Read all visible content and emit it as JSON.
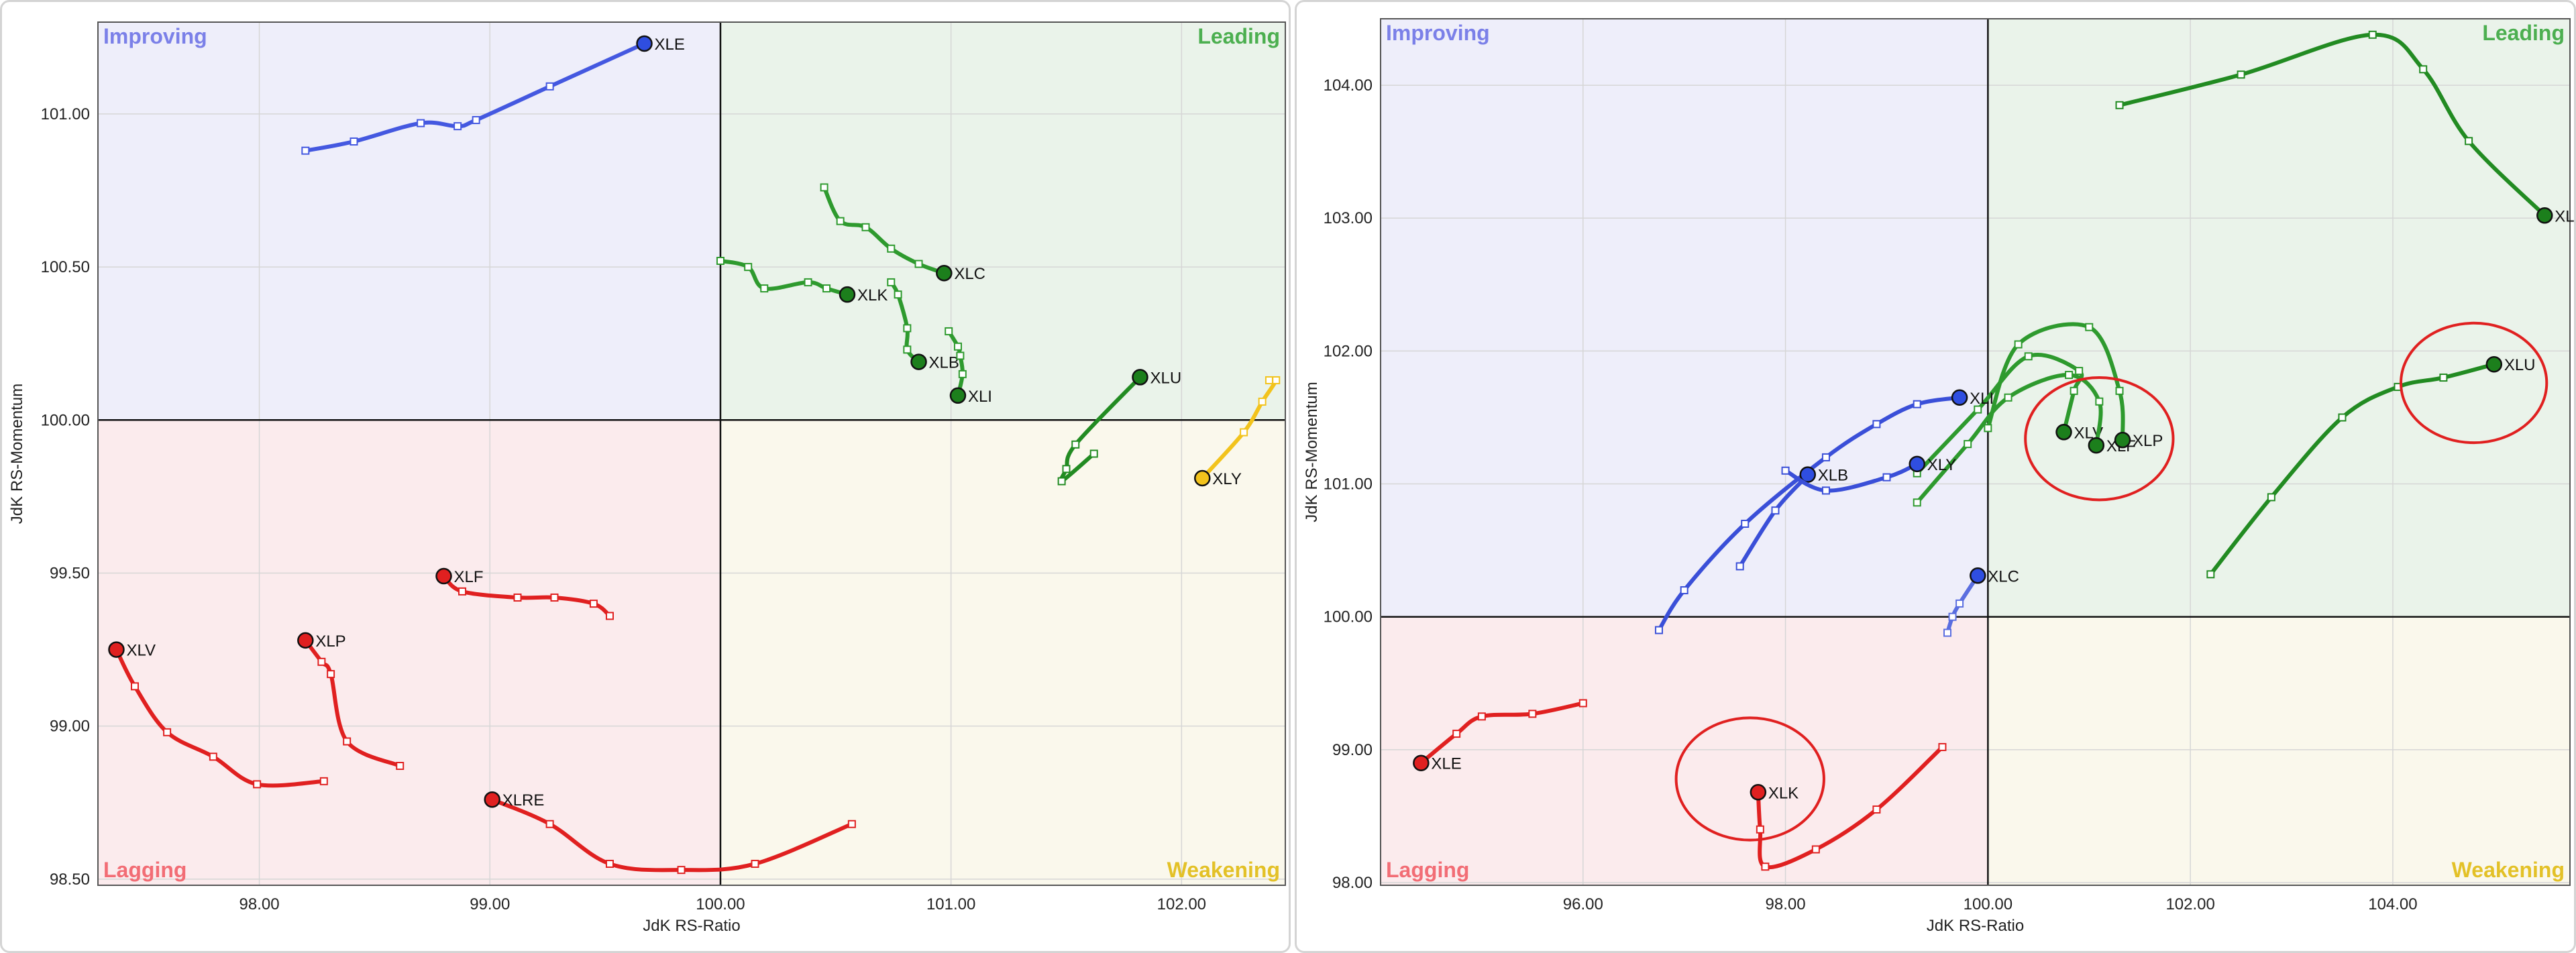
{
  "chart_data": [
    {
      "type": "scatter",
      "title": "",
      "xlabel": "JdK RS-Ratio",
      "ylabel": "JdK RS-Momentum",
      "xlim": [
        97.3,
        102.45
      ],
      "ylim": [
        98.48,
        101.3
      ],
      "xticks": [
        "98.00",
        "99.00",
        "100.00",
        "101.00",
        "102.00"
      ],
      "xtick_values": [
        98,
        99,
        100,
        101,
        102
      ],
      "yticks": [
        "98.50",
        "99.00",
        "99.50",
        "100.00",
        "100.50",
        "101.00"
      ],
      "ytick_values": [
        98.5,
        99,
        99.5,
        100,
        100.5,
        101
      ],
      "grid": true,
      "quadrants": {
        "improving": {
          "label": "Improving",
          "fill": "#eeeefa",
          "color": "#7b80e8"
        },
        "leading": {
          "label": "Leading",
          "fill": "#eaf3ea",
          "color": "#4caf50"
        },
        "lagging": {
          "label": "Lagging",
          "fill": "#fbebed",
          "color": "#f26d75"
        },
        "weakening": {
          "label": "Weakening",
          "fill": "#faf8ec",
          "color": "#e3c127"
        }
      },
      "series": [
        {
          "name": "XLE",
          "color": "#4458e0",
          "head_fill": "#2f4ee0",
          "x": [
            98.2,
            98.41,
            98.7,
            98.86,
            98.94,
            99.26,
            99.67
          ],
          "y": [
            100.88,
            100.91,
            100.97,
            100.96,
            100.98,
            101.09,
            101.23
          ]
        },
        {
          "name": "XLC",
          "color": "#2e9a2e",
          "head_fill": "#1c7f1c",
          "x": [
            100.45,
            100.52,
            100.63,
            100.74,
            100.86,
            100.97
          ],
          "y": [
            100.76,
            100.65,
            100.63,
            100.56,
            100.51,
            100.48
          ]
        },
        {
          "name": "XLK",
          "color": "#2e9a2e",
          "head_fill": "#1c7f1c",
          "x": [
            100.0,
            100.12,
            100.19,
            100.38,
            100.46,
            100.55
          ],
          "y": [
            100.52,
            100.5,
            100.43,
            100.45,
            100.43,
            100.41
          ]
        },
        {
          "name": "XLB",
          "color": "#2e9a2e",
          "head_fill": "#1c7f1c",
          "x": [
            100.74,
            100.77,
            100.81,
            100.81,
            100.86
          ],
          "y": [
            100.45,
            100.41,
            100.3,
            100.23,
            100.19
          ]
        },
        {
          "name": "XLI",
          "color": "#2e9a2e",
          "head_fill": "#1c7f1c",
          "x": [
            100.99,
            101.03,
            101.04,
            101.05,
            101.03
          ],
          "y": [
            100.29,
            100.24,
            100.21,
            100.15,
            100.08
          ]
        },
        {
          "name": "XLU",
          "color": "#228b22",
          "head_fill": "#1c7f1c",
          "x": [
            101.62,
            101.48,
            101.5,
            101.54,
            101.82
          ],
          "y": [
            99.89,
            99.8,
            99.84,
            99.92,
            100.14
          ]
        },
        {
          "name": "XLY",
          "color": "#f2c31c",
          "head_fill": "#f2c31c",
          "x": [
            102.38,
            102.41,
            102.35,
            102.27,
            102.09
          ],
          "y": [
            100.13,
            100.13,
            100.06,
            99.96,
            99.81
          ]
        },
        {
          "name": "XLF",
          "color": "#e02020",
          "head_fill": "#e02020",
          "x": [
            99.52,
            99.45,
            99.28,
            99.12,
            98.88,
            98.8
          ],
          "y": [
            99.36,
            99.4,
            99.42,
            99.42,
            99.44,
            99.49
          ]
        },
        {
          "name": "XLV",
          "color": "#e02020",
          "head_fill": "#e02020",
          "x": [
            98.28,
            97.99,
            97.8,
            97.6,
            97.46,
            97.38
          ],
          "y": [
            98.82,
            98.81,
            98.9,
            98.98,
            99.13,
            99.25
          ]
        },
        {
          "name": "XLP",
          "color": "#e02020",
          "head_fill": "#e02020",
          "x": [
            98.61,
            98.38,
            98.31,
            98.27,
            98.2
          ],
          "y": [
            98.87,
            98.95,
            99.17,
            99.21,
            99.28
          ]
        },
        {
          "name": "XLRE",
          "color": "#e02020",
          "head_fill": "#e02020",
          "x": [
            100.57,
            100.15,
            99.83,
            99.52,
            99.26,
            99.01
          ],
          "y": [
            98.68,
            98.55,
            98.53,
            98.55,
            98.68,
            98.76
          ]
        }
      ]
    },
    {
      "type": "scatter",
      "title": "",
      "xlabel": "JdK RS-Ratio",
      "ylabel": "JdK RS-Momentum",
      "xlim": [
        94.0,
        105.75
      ],
      "ylim": [
        97.98,
        104.5
      ],
      "xticks": [
        "96.00",
        "98.00",
        "100.00",
        "102.00",
        "104.00"
      ],
      "xtick_values": [
        96,
        98,
        100,
        102,
        104
      ],
      "yticks": [
        "98.00",
        "99.00",
        "100.00",
        "101.00",
        "102.00",
        "103.00",
        "104.00"
      ],
      "ytick_values": [
        98,
        99,
        100,
        101,
        102,
        103,
        104
      ],
      "grid": true,
      "quadrants": {
        "improving": {
          "label": "Improving",
          "fill": "#eeeefa",
          "color": "#7b80e8"
        },
        "leading": {
          "label": "Leading",
          "fill": "#eaf3ea",
          "color": "#4caf50"
        },
        "lagging": {
          "label": "Lagging",
          "fill": "#fbebed",
          "color": "#f26d75"
        },
        "weakening": {
          "label": "Weakening",
          "fill": "#faf8ec",
          "color": "#e3c127"
        }
      },
      "series": [
        {
          "name": "XLRE",
          "color": "#228b22",
          "head_fill": "#1c7f1c",
          "x": [
            101.3,
            102.5,
            103.8,
            104.3,
            104.75,
            105.5
          ],
          "y": [
            103.85,
            104.08,
            104.38,
            104.12,
            103.58,
            103.02
          ]
        },
        {
          "name": "XLU",
          "color": "#228b22",
          "head_fill": "#1c7f1c",
          "x": [
            102.2,
            102.8,
            103.5,
            104.05,
            104.5,
            105.0
          ],
          "y": [
            100.32,
            100.9,
            101.5,
            101.73,
            101.8,
            101.9
          ]
        },
        {
          "name": "XLV",
          "color": "#2e9a2e",
          "head_fill": "#1c7f1c",
          "x": [
            99.3,
            99.9,
            100.4,
            100.9,
            100.85,
            100.75
          ],
          "y": [
            101.08,
            101.56,
            101.96,
            101.85,
            101.7,
            101.39
          ]
        },
        {
          "name": "XLF",
          "color": "#2e9a2e",
          "head_fill": "#1c7f1c",
          "x": [
            99.3,
            99.8,
            100.2,
            100.8,
            101.1,
            101.07
          ],
          "y": [
            100.86,
            101.3,
            101.65,
            101.82,
            101.62,
            101.29
          ]
        },
        {
          "name": "XLP",
          "color": "#2e9a2e",
          "head_fill": "#1c7f1c",
          "x": [
            100.0,
            100.3,
            101.0,
            101.3,
            101.33
          ],
          "y": [
            101.42,
            102.05,
            102.18,
            101.7,
            101.33
          ]
        },
        {
          "name": "XLI",
          "color": "#3a4fd8",
          "head_fill": "#2f4ee0",
          "x": [
            96.75,
            97.0,
            97.6,
            98.4,
            98.9,
            99.3,
            99.72
          ],
          "y": [
            99.9,
            100.2,
            100.7,
            101.2,
            101.45,
            101.6,
            101.65
          ]
        },
        {
          "name": "XLB",
          "color": "#3a4fd8",
          "head_fill": "#2f4ee0",
          "x": [
            97.55,
            97.9,
            98.2,
            98.22
          ],
          "y": [
            100.38,
            100.8,
            101.05,
            101.07
          ]
        },
        {
          "name": "XLY",
          "color": "#3a4fd8",
          "head_fill": "#2f4ee0",
          "x": [
            98.0,
            98.4,
            99.0,
            99.3
          ],
          "y": [
            101.1,
            100.95,
            101.05,
            101.15
          ]
        },
        {
          "name": "XLC",
          "color": "#5a6ee0",
          "head_fill": "#2f4ee0",
          "x": [
            99.6,
            99.65,
            99.72,
            99.9
          ],
          "y": [
            99.88,
            100.0,
            100.1,
            100.31
          ]
        },
        {
          "name": "XLE",
          "color": "#e02020",
          "head_fill": "#e02020",
          "x": [
            96.0,
            95.5,
            95.0,
            94.75,
            94.4
          ],
          "y": [
            99.35,
            99.27,
            99.25,
            99.12,
            98.9
          ]
        },
        {
          "name": "XLK",
          "color": "#e02020",
          "head_fill": "#e02020",
          "x": [
            99.55,
            98.9,
            98.3,
            97.8,
            97.75,
            97.73
          ],
          "y": [
            99.02,
            98.55,
            98.25,
            98.12,
            98.4,
            98.68
          ]
        }
      ],
      "annotations": [
        {
          "type": "ellipse",
          "color": "#e02020",
          "cx": 101.1,
          "cy": 101.34,
          "rx": 0.73,
          "ry": 0.46
        },
        {
          "type": "ellipse",
          "color": "#e02020",
          "cx": 104.8,
          "cy": 101.76,
          "rx": 0.72,
          "ry": 0.45
        },
        {
          "type": "ellipse",
          "color": "#e02020",
          "cx": 97.65,
          "cy": 98.78,
          "rx": 0.73,
          "ry": 0.46
        }
      ]
    }
  ]
}
